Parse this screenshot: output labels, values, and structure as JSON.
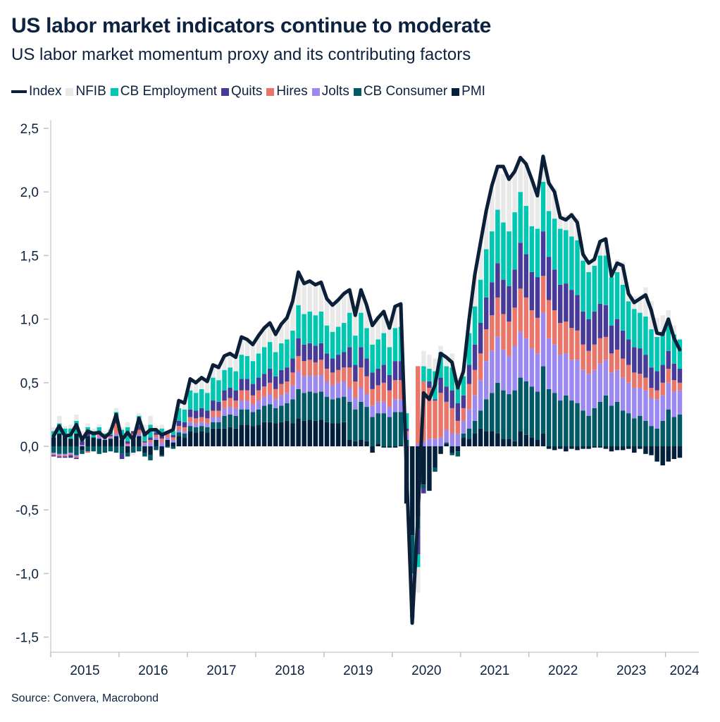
{
  "title": "US labor market indicators continue to moderate",
  "subtitle": "US labor market momentum proxy and its contributing factors",
  "source": "Source: Convera, Macrobond",
  "legend": [
    {
      "label": "Index",
      "color": "#0b2038",
      "kind": "line"
    },
    {
      "label": "NFIB",
      "color": "#e9e9e9",
      "kind": "bar"
    },
    {
      "label": "CB Employment",
      "color": "#00c7b1",
      "kind": "bar"
    },
    {
      "label": "Quits",
      "color": "#473a99",
      "kind": "bar"
    },
    {
      "label": "Hires",
      "color": "#ea766a",
      "kind": "bar"
    },
    {
      "label": "Jolts",
      "color": "#9b88f0",
      "kind": "bar"
    },
    {
      "label": "CB Consumer",
      "color": "#005964",
      "kind": "bar"
    },
    {
      "label": "PMI",
      "color": "#021f3c",
      "kind": "bar"
    }
  ],
  "chart_data": {
    "type": "bar",
    "stacked": true,
    "period": {
      "start": "2015-01",
      "end": "2024-03",
      "frequency": "monthly"
    },
    "ylim": [
      -1.5,
      2.5
    ],
    "yticks": [
      "2,5",
      "2,0",
      "1,5",
      "1,0",
      "0,5",
      "0,0",
      "-0,5",
      "-1,0",
      "-1,5"
    ],
    "ytick_values": [
      2.5,
      2.0,
      1.5,
      1.0,
      0.5,
      0.0,
      -0.5,
      -1.0,
      -1.5
    ],
    "xticks": [
      "2015",
      "2016",
      "2017",
      "2018",
      "2019",
      "2020",
      "2021",
      "2022",
      "2023",
      "2024"
    ],
    "grid": false,
    "legend_position": "top",
    "stack_order": [
      "PMI",
      "CB Consumer",
      "Jolts",
      "Hires",
      "Quits",
      "CB Employment",
      "NFIB"
    ],
    "stack_colors": [
      "#021f3c",
      "#005964",
      "#9b88f0",
      "#ea766a",
      "#473a99",
      "#00c7b1",
      "#e9e9e9"
    ],
    "stack_values_by_month": [
      [
        0.07,
        -0.05,
        -0.01,
        -0.01,
        -0.01,
        0.05,
        0.03
      ],
      [
        0.1,
        -0.06,
        -0.01,
        -0.01,
        -0.01,
        0.08,
        0.06
      ],
      [
        0.08,
        -0.06,
        -0.01,
        -0.01,
        -0.01,
        0.06,
        0.02
      ],
      [
        0.06,
        -0.05,
        -0.01,
        -0.01,
        -0.02,
        0.08,
        0.03
      ],
      [
        0.1,
        -0.07,
        -0.01,
        -0.01,
        -0.01,
        0.1,
        0.05
      ],
      [
        -0.03,
        -0.03,
        0.01,
        0,
        0.03,
        0.04,
        0.04
      ],
      [
        0.08,
        -0.04,
        0,
        -0.01,
        0.03,
        0.04,
        0.03
      ],
      [
        0.07,
        -0.04,
        0,
        0,
        0,
        0.05,
        0.02
      ],
      [
        0.06,
        -0.06,
        0.02,
        0.02,
        0.02,
        0.03,
        0.02
      ],
      [
        0.05,
        -0.05,
        0.01,
        0.01,
        0.01,
        0.02,
        0.02
      ],
      [
        0.06,
        -0.04,
        0.01,
        0.01,
        0.01,
        0.04,
        0.02
      ],
      [
        0.08,
        -0.05,
        0.02,
        0.08,
        0.06,
        0.03,
        0.03
      ],
      [
        0.05,
        -0.06,
        0.02,
        0.02,
        -0.04,
        0.04,
        0.02
      ],
      [
        -0.05,
        -0.03,
        0.01,
        0.01,
        0.02,
        0.11,
        0.04
      ],
      [
        0.06,
        -0.05,
        0.02,
        0.02,
        0.02,
        0,
        -0.02
      ],
      [
        0.08,
        -0.04,
        0.02,
        0.03,
        0.03,
        0.08,
        0.02
      ],
      [
        -0.05,
        -0.03,
        0.02,
        0.01,
        0.01,
        0.08,
        0.05
      ],
      [
        -0.07,
        -0.04,
        0.03,
        0.02,
        0.02,
        0.1,
        0.07
      ],
      [
        0.05,
        -0.03,
        0.02,
        0.02,
        0.02,
        0.02,
        0.03
      ],
      [
        -0.07,
        -0.01,
        0.03,
        0.03,
        0.03,
        0.05,
        0.03
      ],
      [
        0.05,
        -0.01,
        0.02,
        0.03,
        0.02,
        0,
        0
      ],
      [
        0.03,
        -0.02,
        0.02,
        0.02,
        0.02,
        0.03,
        0.03
      ],
      [
        0.08,
        0.03,
        0.02,
        0.03,
        0.04,
        0.1,
        0.06
      ],
      [
        0.07,
        0.03,
        0.02,
        0.03,
        0.04,
        0.1,
        0.05
      ],
      [
        0.12,
        0.04,
        0.03,
        0.04,
        0.06,
        0.15,
        0.09
      ],
      [
        0.11,
        0.04,
        0.03,
        0.04,
        0.06,
        0.14,
        0.08
      ],
      [
        0.12,
        0.04,
        0.03,
        0.04,
        0.07,
        0.15,
        0.09
      ],
      [
        0.11,
        0.04,
        0.03,
        0.04,
        0.06,
        0.14,
        0.09
      ],
      [
        0.14,
        0.05,
        0.04,
        0.05,
        0.08,
        0.18,
        0.1
      ],
      [
        0.14,
        0.05,
        0.04,
        0.05,
        0.07,
        0.17,
        0.1
      ],
      [
        0.14,
        0.1,
        0.06,
        0.06,
        0.08,
        0.16,
        0.11
      ],
      [
        0.15,
        0.1,
        0.06,
        0.07,
        0.08,
        0.16,
        0.11
      ],
      [
        0.14,
        0.1,
        0.06,
        0.06,
        0.08,
        0.15,
        0.11
      ],
      [
        0.17,
        0.12,
        0.07,
        0.08,
        0.09,
        0.19,
        0.14
      ],
      [
        0.17,
        0.12,
        0.07,
        0.08,
        0.09,
        0.18,
        0.13
      ],
      [
        0.16,
        0.11,
        0.06,
        0.07,
        0.09,
        0.18,
        0.13
      ],
      [
        0.17,
        0.12,
        0.07,
        0.08,
        0.1,
        0.19,
        0.14
      ],
      [
        0.19,
        0.13,
        0.07,
        0.08,
        0.1,
        0.21,
        0.15
      ],
      [
        0.19,
        0.14,
        0.08,
        0.09,
        0.11,
        0.21,
        0.15
      ],
      [
        0.18,
        0.12,
        0.07,
        0.08,
        0.1,
        0.19,
        0.14
      ],
      [
        0.19,
        0.13,
        0.08,
        0.09,
        0.11,
        0.21,
        0.15
      ],
      [
        0.2,
        0.14,
        0.08,
        0.09,
        0.11,
        0.22,
        0.17
      ],
      [
        0.18,
        0.19,
        0.11,
        0.1,
        0.11,
        0.22,
        0.23
      ],
      [
        0.22,
        0.23,
        0.14,
        0.12,
        0.14,
        0.26,
        0.26
      ],
      [
        0.2,
        0.22,
        0.13,
        0.12,
        0.13,
        0.24,
        0.24
      ],
      [
        0.21,
        0.22,
        0.13,
        0.12,
        0.13,
        0.25,
        0.24
      ],
      [
        0.2,
        0.22,
        0.13,
        0.11,
        0.13,
        0.24,
        0.24
      ],
      [
        0.21,
        0.22,
        0.13,
        0.12,
        0.13,
        0.25,
        0.23
      ],
      [
        0.19,
        0.2,
        0.12,
        0.1,
        0.12,
        0.22,
        0.21
      ],
      [
        0.18,
        0.19,
        0.11,
        0.1,
        0.11,
        0.21,
        0.21
      ],
      [
        0.18,
        0.2,
        0.12,
        0.1,
        0.12,
        0.22,
        0.21
      ],
      [
        0.19,
        0.2,
        0.12,
        0.11,
        0.12,
        0.23,
        0.23
      ],
      [
        0.05,
        0.3,
        0.11,
        0.16,
        0.16,
        0.27,
        0.18
      ],
      [
        0.04,
        0.25,
        0.09,
        0.13,
        0.13,
        0.23,
        0.16
      ],
      [
        0.05,
        0.3,
        0.11,
        0.16,
        0.16,
        0.27,
        0.18
      ],
      [
        0.04,
        0.27,
        0.1,
        0.14,
        0.14,
        0.24,
        0.18
      ],
      [
        -0.05,
        0.23,
        0.09,
        0.13,
        0.13,
        0.22,
        0.14
      ],
      [
        0.02,
        0.24,
        0.09,
        0.13,
        0.13,
        0.23,
        0.17
      ],
      [
        -0.01,
        0.26,
        0.09,
        0.15,
        0.14,
        0.25,
        0.18
      ],
      [
        -0.01,
        0.23,
        0.08,
        0.13,
        0.12,
        0.22,
        0.16
      ],
      [
        -0.01,
        0.27,
        0.1,
        0.15,
        0.15,
        0.26,
        0.18
      ],
      [
        0.01,
        0.26,
        0.1,
        0.15,
        0.15,
        0.27,
        0.18
      ],
      [
        -0.45,
        0.05,
        0.05,
        0.02,
        0.02,
        0.12,
        0
      ],
      [
        -0.7,
        -0.3,
        -0.05,
        -0.2,
        -0.05,
        -0.05,
        -0.04
      ],
      [
        -0.55,
        -0.1,
        0.02,
        0.61,
        -0.2,
        -0.1,
        -0.2
      ],
      [
        -0.3,
        -0.03,
        0.04,
        0.47,
        -0.04,
        0.12,
        0.12
      ],
      [
        -0.35,
        0,
        0.06,
        0.4,
        0.05,
        0.1,
        0.11
      ],
      [
        -0.17,
        -0.03,
        0.06,
        0.3,
        0.01,
        0.22,
        0.1
      ],
      [
        -0.06,
        0,
        0.07,
        0.35,
        0.12,
        0.2,
        0.05
      ],
      [
        0.02,
        0.01,
        0.1,
        0.22,
        0.12,
        0.16,
        0.07
      ],
      [
        -0.05,
        -0.02,
        0.1,
        0.2,
        0.14,
        0.18,
        0.11
      ],
      [
        -0.04,
        -0.04,
        0.1,
        0.1,
        0.14,
        0.16,
        0.04
      ],
      [
        0.07,
        0.03,
        0.1,
        0.1,
        0.1,
        0.15,
        0.04
      ],
      [
        0.06,
        0.08,
        0.15,
        0.2,
        0.15,
        0.25,
        0.11
      ],
      [
        0.1,
        0.1,
        0.2,
        0.2,
        0.2,
        0.3,
        0.25
      ],
      [
        0.14,
        0.14,
        0.24,
        0.21,
        0.24,
        0.34,
        0.29
      ],
      [
        0.12,
        0.25,
        0.3,
        0.25,
        0.25,
        0.38,
        0.3
      ],
      [
        0.12,
        0.3,
        0.33,
        0.28,
        0.26,
        0.4,
        0.33
      ],
      [
        0.1,
        0.4,
        0.36,
        0.31,
        0.27,
        0.42,
        0.34
      ],
      [
        0.06,
        0.38,
        0.32,
        0.28,
        0.27,
        0.45,
        0.38
      ],
      [
        0.06,
        0.35,
        0.3,
        0.27,
        0.28,
        0.43,
        0.41
      ],
      [
        0.04,
        0.4,
        0.35,
        0.3,
        0.3,
        0.45,
        0.32
      ],
      [
        0.12,
        0.42,
        0.36,
        0.34,
        0.36,
        0.4,
        0.27
      ],
      [
        0.09,
        0.42,
        0.34,
        0.32,
        0.34,
        0.38,
        0.33
      ],
      [
        0.07,
        0.4,
        0.3,
        0.3,
        0.3,
        0.36,
        0.37
      ],
      [
        0.05,
        0.38,
        0.3,
        0.28,
        0.32,
        0.38,
        0.26
      ],
      [
        0.1,
        0.53,
        0.42,
        0.29,
        0.35,
        0.39,
        0.2
      ],
      [
        -0.02,
        0.45,
        0.4,
        0.3,
        0.34,
        0.36,
        0.24
      ],
      [
        -0.03,
        0.42,
        0.38,
        0.27,
        0.32,
        0.4,
        0.24
      ],
      [
        -0.02,
        0.36,
        0.36,
        0.25,
        0.3,
        0.44,
        0.09
      ],
      [
        -0.04,
        0.4,
        0.33,
        0.25,
        0.3,
        0.42,
        0.12
      ],
      [
        -0.02,
        0.36,
        0.32,
        0.25,
        0.3,
        0.42,
        0.19
      ],
      [
        -0.03,
        0.34,
        0.34,
        0.23,
        0.28,
        0.43,
        0.17
      ],
      [
        -0.02,
        0.28,
        0.32,
        0.2,
        0.26,
        0.4,
        0.07
      ],
      [
        -0.02,
        0.24,
        0.33,
        0.18,
        0.25,
        0.37,
        0.07
      ],
      [
        -0.01,
        0.3,
        0.3,
        0.2,
        0.26,
        0.36,
        0.06
      ],
      [
        -0.01,
        0.35,
        0.3,
        0.2,
        0.27,
        0.38,
        0.12
      ],
      [
        -0.02,
        0.4,
        0.28,
        0.18,
        0.25,
        0.39,
        0.13
      ],
      [
        -0.04,
        0.32,
        0.26,
        0.15,
        0.22,
        0.38,
        0.05
      ],
      [
        -0.03,
        0.35,
        0.25,
        0.16,
        0.24,
        0.37,
        0.1
      ],
      [
        -0.03,
        0.28,
        0.26,
        0.15,
        0.22,
        0.36,
        0.18
      ],
      [
        -0.02,
        0.26,
        0.24,
        0.14,
        0.2,
        0.3,
        0.08
      ],
      [
        -0.05,
        0.22,
        0.24,
        0.12,
        0.2,
        0.3,
        0.1
      ],
      [
        -0.02,
        0.24,
        0.22,
        0.11,
        0.2,
        0.28,
        0.13
      ],
      [
        -0.06,
        0.2,
        0.24,
        0.1,
        0.18,
        0.3,
        0.23
      ],
      [
        -0.07,
        0.16,
        0.22,
        0.08,
        0.16,
        0.3,
        0.22
      ],
      [
        -0.12,
        0.14,
        0.23,
        0.07,
        0.15,
        0.27,
        0.15
      ],
      [
        -0.15,
        0.2,
        0.2,
        0.1,
        0.14,
        0.26,
        0.13
      ],
      [
        -0.12,
        0.29,
        0.21,
        0.11,
        0.14,
        0.21,
        0.11
      ],
      [
        -0.1,
        0.23,
        0.2,
        0.09,
        0.13,
        0.23,
        0.07
      ],
      [
        -0.09,
        0.25,
        0.19,
        0.06,
        0.11,
        0.23,
        0
      ]
    ],
    "index": {
      "name": "Index",
      "values": [
        0.08,
        0.16,
        0.08,
        0.09,
        0.17,
        0.05,
        0.12,
        0.1,
        0.11,
        0.07,
        0.11,
        0.25,
        0.05,
        0.11,
        0.05,
        0.22,
        0.09,
        0.13,
        0.13,
        0.09,
        0.11,
        0.13,
        0.36,
        0.34,
        0.53,
        0.5,
        0.54,
        0.51,
        0.64,
        0.62,
        0.71,
        0.73,
        0.7,
        0.86,
        0.84,
        0.8,
        0.87,
        0.93,
        0.97,
        0.88,
        0.96,
        1.01,
        1.14,
        1.37,
        1.28,
        1.3,
        1.27,
        1.29,
        1.16,
        1.11,
        1.15,
        1.2,
        1.23,
        1.03,
        1.23,
        1.11,
        0.95,
        1.01,
        1.06,
        0.93,
        1.1,
        1.12,
        -0.19,
        -1.39,
        -0.55,
        0.42,
        0.37,
        0.48,
        0.73,
        0.7,
        0.66,
        0.46,
        0.59,
        1.0,
        1.35,
        1.6,
        1.85,
        2.05,
        2.2,
        2.2,
        2.1,
        2.16,
        2.27,
        2.22,
        2.1,
        1.97,
        2.28,
        2.07,
        2.0,
        1.8,
        1.78,
        1.82,
        1.76,
        1.51,
        1.44,
        1.47,
        1.61,
        1.63,
        1.34,
        1.44,
        1.42,
        1.2,
        1.13,
        1.16,
        1.19,
        1.07,
        0.89,
        0.88,
        1.0,
        0.85,
        0.76
      ]
    }
  }
}
